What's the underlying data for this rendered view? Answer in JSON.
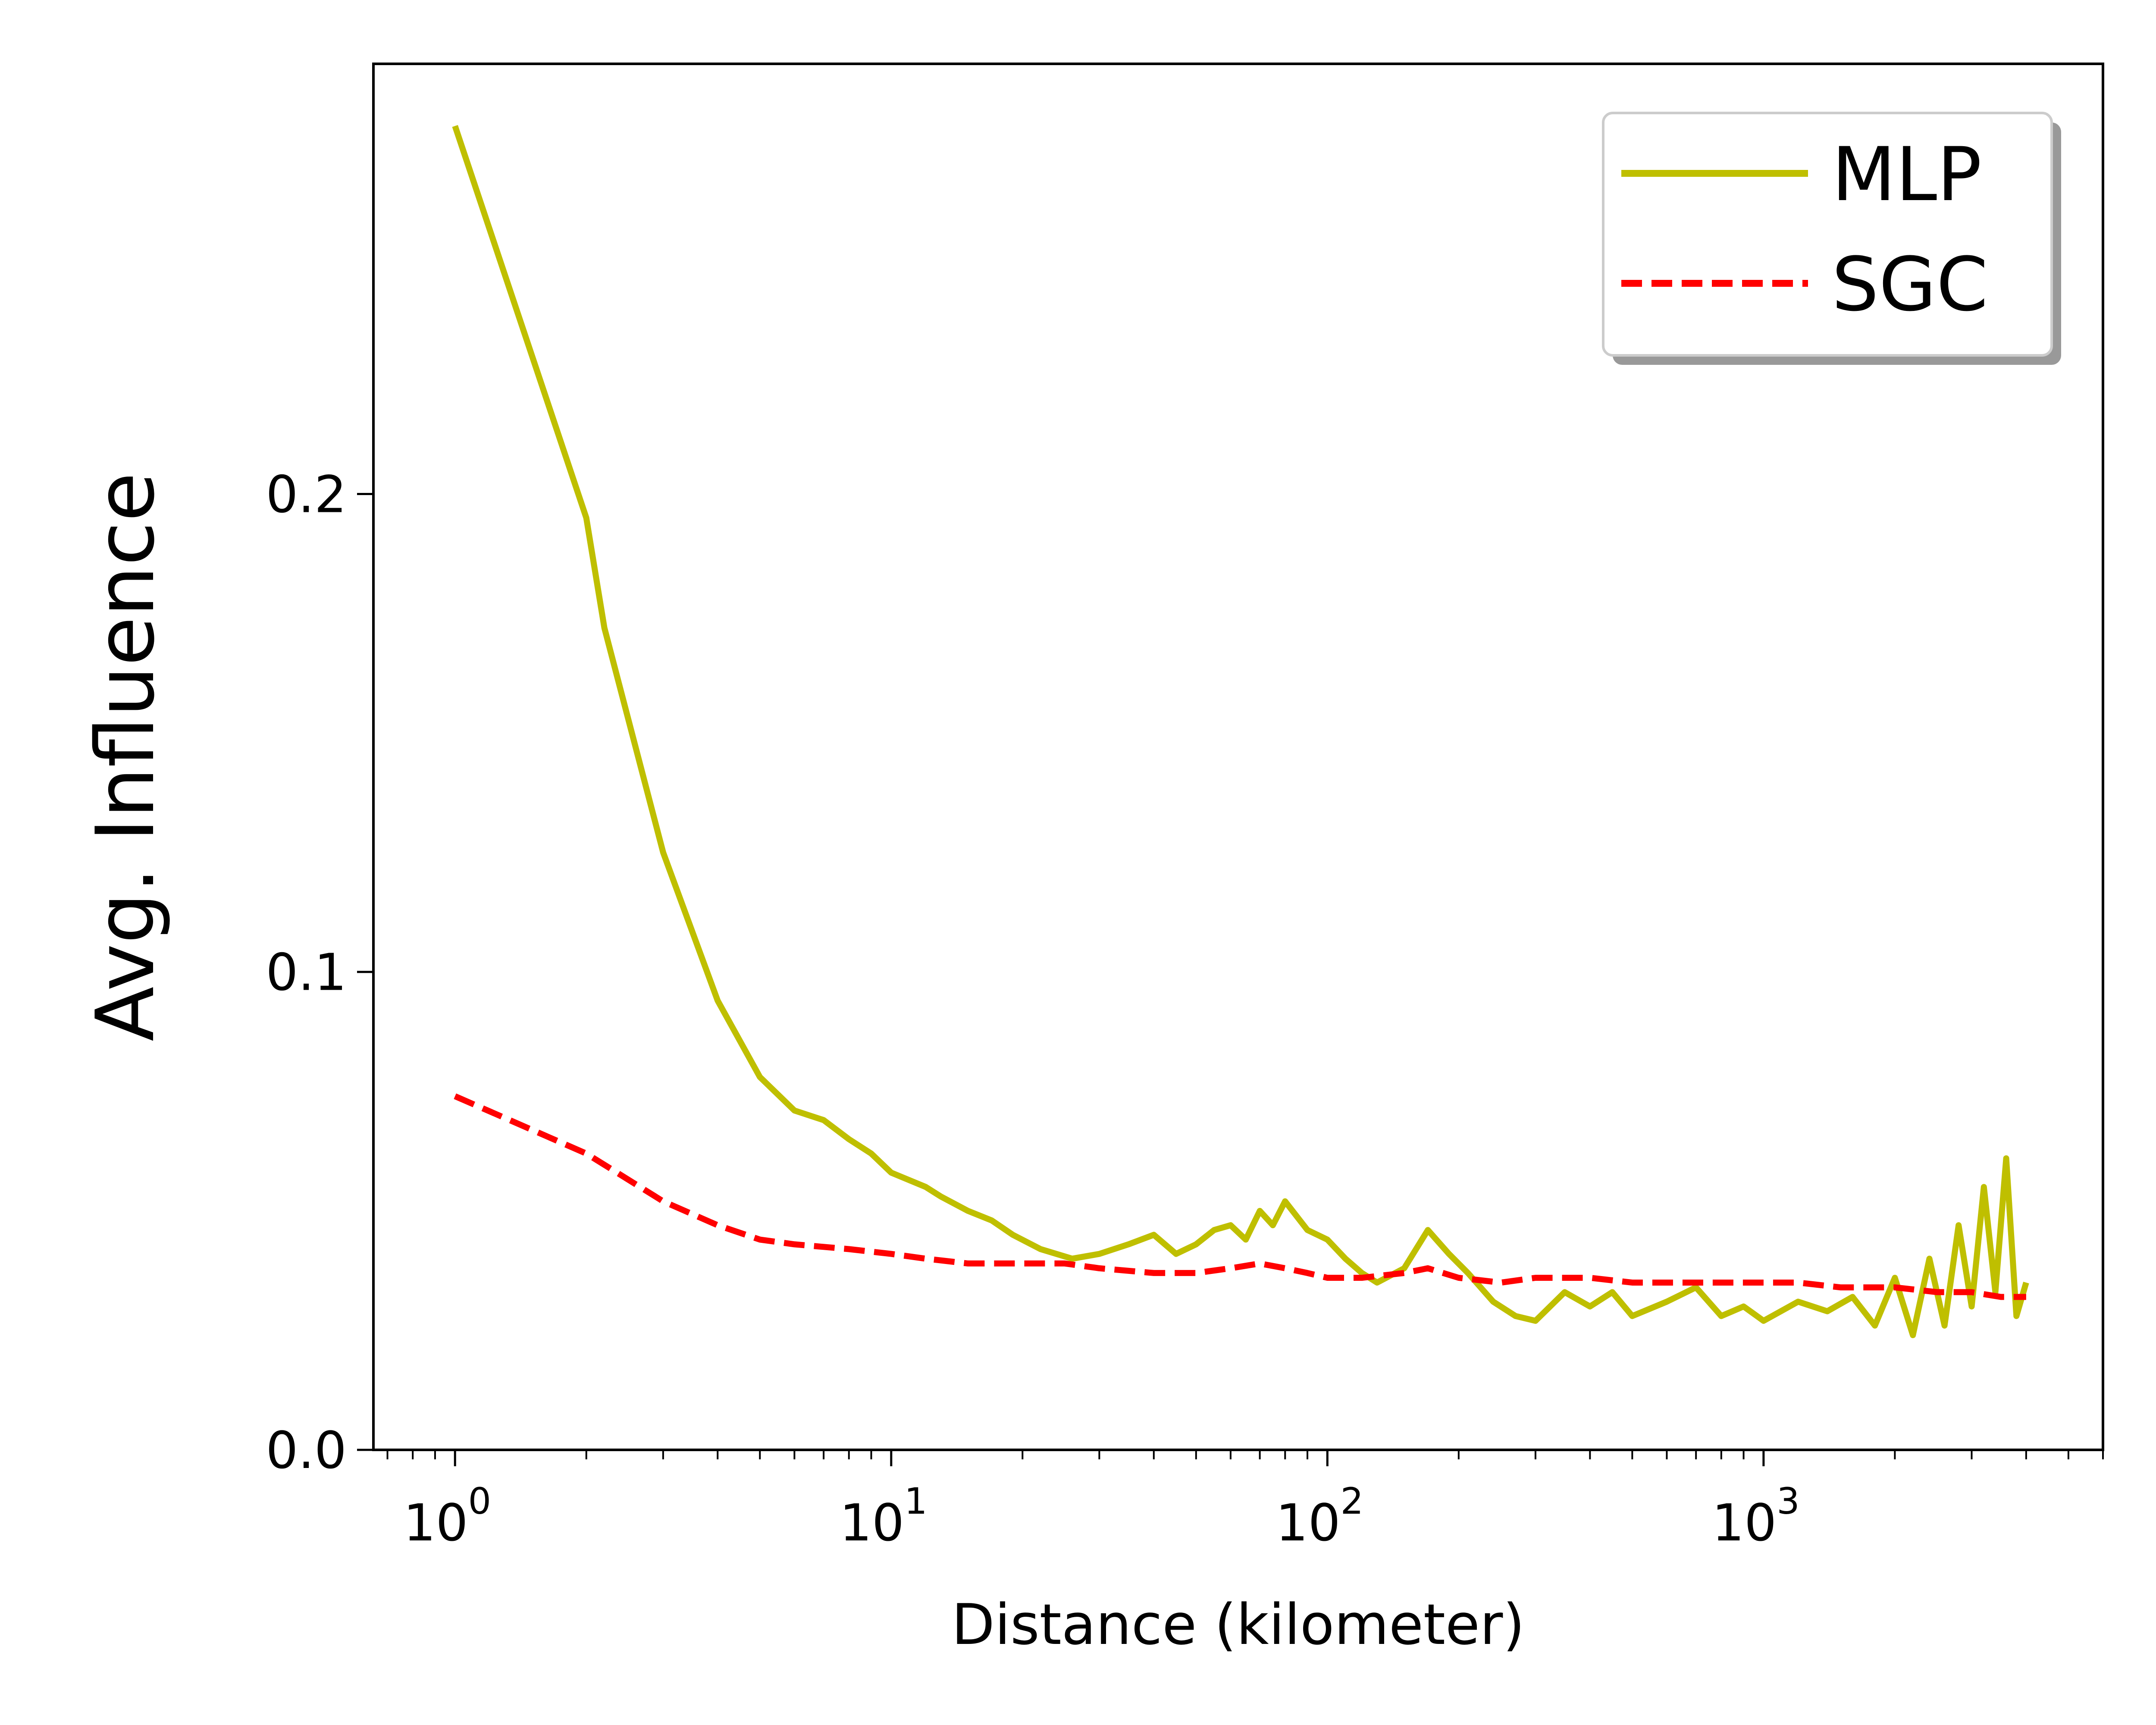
{
  "chart_data": {
    "type": "line",
    "xlabel": "Distance (kilometer)",
    "ylabel": "Avg. Influence",
    "xscale": "log",
    "xlim": [
      0.65,
      6000
    ],
    "ylim": [
      0.0,
      0.29
    ],
    "grid": false,
    "legend_position": "top-right",
    "x_ticks": [
      {
        "base": "10",
        "exp": "0",
        "value": 1
      },
      {
        "base": "10",
        "exp": "1",
        "value": 10
      },
      {
        "base": "10",
        "exp": "2",
        "value": 100
      },
      {
        "base": "10",
        "exp": "3",
        "value": 1000
      }
    ],
    "y_ticks": [
      {
        "label": "0.0",
        "value": 0.0
      },
      {
        "label": "0.1",
        "value": 0.1
      },
      {
        "label": "0.2",
        "value": 0.2
      }
    ],
    "series": [
      {
        "name": "MLP",
        "color": "#bfbf00",
        "style": "solid",
        "x": [
          1,
          2,
          2.2,
          3,
          4,
          5,
          6,
          7,
          8,
          9,
          10,
          12,
          13,
          15,
          17,
          19,
          22,
          26,
          30,
          35,
          40,
          45,
          50,
          55,
          60,
          65,
          70,
          75,
          80,
          90,
          100,
          110,
          120,
          130,
          150,
          170,
          190,
          210,
          240,
          270,
          300,
          350,
          400,
          450,
          500,
          600,
          700,
          800,
          900,
          1000,
          1200,
          1400,
          1600,
          1800,
          2000,
          2200,
          2400,
          2600,
          2800,
          3000,
          3200,
          3400,
          3600,
          3800,
          4000
        ],
        "y": [
          0.277,
          0.195,
          0.172,
          0.125,
          0.094,
          0.078,
          0.071,
          0.069,
          0.065,
          0.062,
          0.058,
          0.055,
          0.053,
          0.05,
          0.048,
          0.045,
          0.042,
          0.04,
          0.041,
          0.043,
          0.045,
          0.041,
          0.043,
          0.046,
          0.047,
          0.044,
          0.05,
          0.047,
          0.052,
          0.046,
          0.044,
          0.04,
          0.037,
          0.035,
          0.038,
          0.046,
          0.041,
          0.037,
          0.031,
          0.028,
          0.027,
          0.033,
          0.03,
          0.033,
          0.028,
          0.031,
          0.034,
          0.028,
          0.03,
          0.027,
          0.031,
          0.029,
          0.032,
          0.026,
          0.036,
          0.024,
          0.04,
          0.026,
          0.047,
          0.03,
          0.055,
          0.033,
          0.061,
          0.028,
          0.035
        ]
      },
      {
        "name": "SGC",
        "color": "#ff0000",
        "style": "dashed",
        "x": [
          1,
          2,
          3,
          4,
          5,
          6,
          8,
          10,
          12,
          15,
          20,
          25,
          30,
          40,
          50,
          60,
          70,
          80,
          90,
          100,
          120,
          150,
          170,
          200,
          250,
          300,
          400,
          500,
          600,
          700,
          800,
          1000,
          1200,
          1500,
          2000,
          2500,
          3000,
          3500,
          4000
        ],
        "y": [
          0.074,
          0.062,
          0.052,
          0.047,
          0.044,
          0.043,
          0.042,
          0.041,
          0.04,
          0.039,
          0.039,
          0.039,
          0.038,
          0.037,
          0.037,
          0.038,
          0.039,
          0.038,
          0.037,
          0.036,
          0.036,
          0.037,
          0.038,
          0.036,
          0.035,
          0.036,
          0.036,
          0.035,
          0.035,
          0.035,
          0.035,
          0.035,
          0.035,
          0.034,
          0.034,
          0.033,
          0.033,
          0.032,
          0.032
        ]
      }
    ]
  }
}
